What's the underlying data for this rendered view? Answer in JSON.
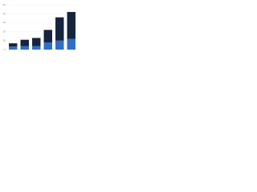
{
  "chart_data": {
    "type": "stacked-bar",
    "categories": [
      null,
      null,
      null,
      null,
      null,
      null
    ],
    "series": [
      {
        "color": "#2f6fc6",
        "values": [
          3.5,
          4,
          4,
          8,
          10,
          12
        ]
      },
      {
        "color": "#16243d",
        "values": [
          3.5,
          7,
          9,
          14,
          26,
          30
        ]
      }
    ],
    "ylim": [
      0,
      50
    ],
    "yticks": [
      0,
      10,
      20,
      30,
      40,
      50
    ],
    "grid": true
  }
}
